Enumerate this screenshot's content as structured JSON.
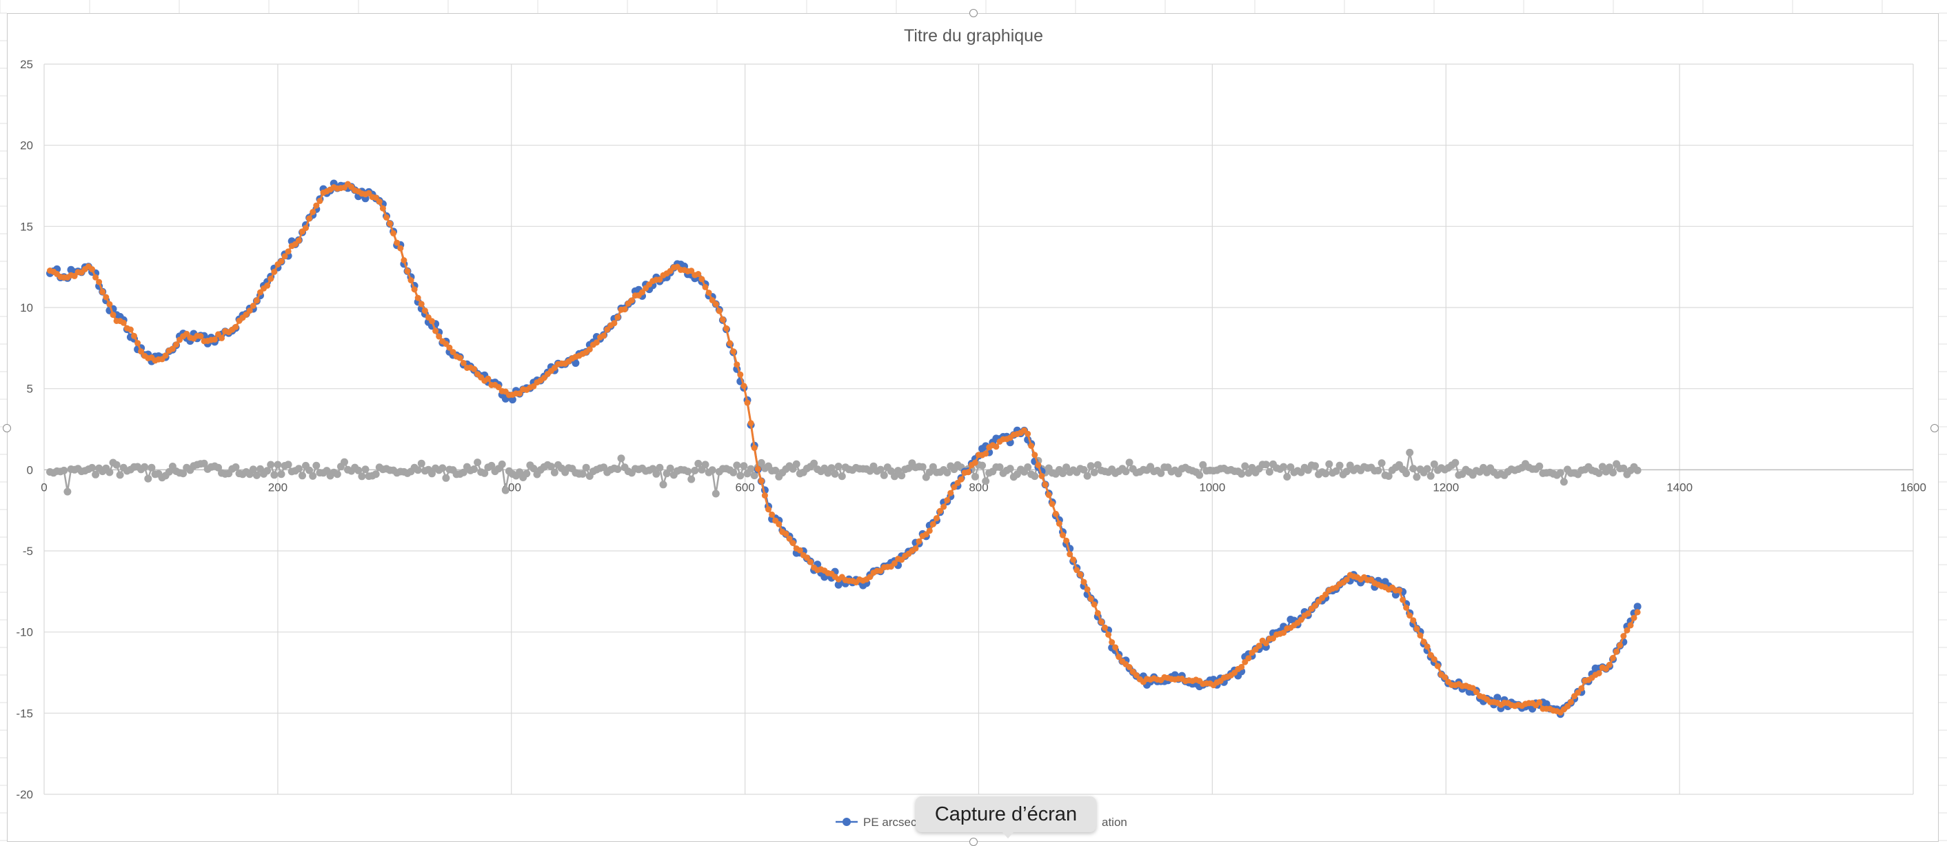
{
  "chart_data": {
    "type": "line",
    "title": "Titre du graphique",
    "xlabel": "",
    "ylabel": "",
    "xlim": [
      0,
      1600
    ],
    "ylim": [
      -20,
      25
    ],
    "x_ticks": [
      0,
      200,
      400,
      600,
      800,
      1000,
      1200,
      1400,
      1600
    ],
    "y_ticks": [
      25,
      20,
      15,
      10,
      5,
      0,
      -5,
      -10,
      -15,
      -20
    ],
    "grid": true,
    "legend_position": "bottom",
    "legend_visible_text": [
      "PE arcsec",
      "ation"
    ],
    "markers": true,
    "series": [
      {
        "name": "PE arcsec",
        "color": "#4472c4",
        "x": [
          5,
          20,
          40,
          50,
          60,
          75,
          85,
          100,
          120,
          140,
          160,
          180,
          200,
          220,
          240,
          260,
          270,
          285,
          300,
          320,
          340,
          360,
          380,
          400,
          420,
          440,
          460,
          480,
          500,
          520,
          540,
          560,
          580,
          600,
          610,
          620,
          640,
          660,
          680,
          700,
          720,
          740,
          760,
          780,
          800,
          820,
          840,
          860,
          880,
          900,
          920,
          940,
          960,
          980,
          1000,
          1020,
          1040,
          1060,
          1080,
          1100,
          1120,
          1140,
          1160,
          1180,
          1200,
          1220,
          1240,
          1260,
          1280,
          1300,
          1320,
          1340,
          1365
        ],
        "values": [
          12.3,
          11.8,
          12.5,
          11.0,
          9.5,
          8.5,
          7.0,
          6.8,
          8.3,
          8.0,
          8.5,
          10.2,
          12.5,
          14.5,
          17.2,
          17.5,
          17.1,
          16.8,
          14.5,
          10.5,
          8.0,
          6.5,
          5.5,
          4.5,
          5.2,
          6.5,
          7.0,
          8.5,
          10.3,
          11.5,
          12.5,
          12.0,
          9.5,
          5.0,
          0.5,
          -2.5,
          -4.5,
          -6.0,
          -6.7,
          -6.9,
          -6.0,
          -5.2,
          -3.5,
          -1.0,
          0.8,
          1.8,
          2.5,
          -1.5,
          -5.5,
          -8.5,
          -11.5,
          -13.0,
          -12.8,
          -13.0,
          -13.2,
          -12.5,
          -10.8,
          -10.0,
          -9.0,
          -7.5,
          -6.5,
          -7.0,
          -7.5,
          -10.5,
          -13.0,
          -13.5,
          -14.3,
          -14.5,
          -14.5,
          -15.0,
          -13.0,
          -12.0,
          -8.6
        ],
        "noise": 0.55
      },
      {
        "name": "",
        "color": "#ed7d31",
        "x": [
          5,
          20,
          40,
          50,
          60,
          75,
          85,
          100,
          120,
          140,
          160,
          180,
          200,
          220,
          240,
          260,
          270,
          285,
          300,
          320,
          340,
          360,
          380,
          400,
          420,
          440,
          460,
          480,
          500,
          520,
          540,
          560,
          580,
          600,
          610,
          620,
          640,
          660,
          680,
          700,
          720,
          740,
          760,
          780,
          800,
          820,
          840,
          860,
          880,
          900,
          920,
          940,
          960,
          980,
          1000,
          1020,
          1040,
          1060,
          1080,
          1100,
          1120,
          1140,
          1160,
          1180,
          1200,
          1220,
          1240,
          1260,
          1280,
          1300,
          1320,
          1340,
          1365
        ],
        "values": [
          12.3,
          11.8,
          12.5,
          11.0,
          9.5,
          8.5,
          7.0,
          6.8,
          8.3,
          8.0,
          8.5,
          10.2,
          12.5,
          14.5,
          17.2,
          17.5,
          17.1,
          16.8,
          14.5,
          10.5,
          8.0,
          6.5,
          5.5,
          4.5,
          5.2,
          6.5,
          7.0,
          8.5,
          10.3,
          11.5,
          12.5,
          12.0,
          9.5,
          5.0,
          0.5,
          -2.5,
          -4.5,
          -6.0,
          -6.7,
          -6.9,
          -6.0,
          -5.2,
          -3.5,
          -1.0,
          0.8,
          1.8,
          2.5,
          -1.5,
          -5.5,
          -8.5,
          -11.5,
          -13.0,
          -12.8,
          -13.0,
          -13.2,
          -12.5,
          -10.8,
          -10.0,
          -9.0,
          -7.5,
          -6.5,
          -7.0,
          -7.5,
          -10.5,
          -13.0,
          -13.5,
          -14.3,
          -14.5,
          -14.5,
          -15.0,
          -13.0,
          -12.0,
          -8.6
        ],
        "noise": 0.22
      },
      {
        "name": "",
        "color": "#a5a5a5",
        "x": [
          5,
          1365
        ],
        "values": [
          0,
          0
        ],
        "noise": 0.55
      }
    ]
  },
  "tooltip": {
    "label": "Capture d’écran"
  }
}
